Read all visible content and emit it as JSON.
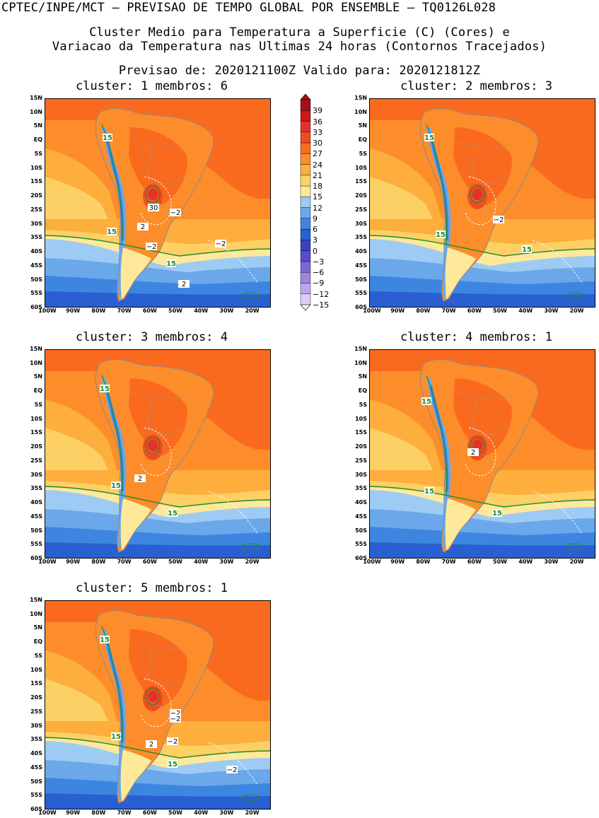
{
  "header": {
    "line1": "CPTEC/INPE/MCT – PREVISAO DE TEMPO GLOBAL POR ENSEMBLE – TQ0126L028",
    "line2": "Cluster Medio para Temperatura a Superficie (C) (Cores) e",
    "line3": "Variacao da Temperatura nas Ultimas 24 horas (Contornos Tracejados)",
    "line4": "Previsao de: 2020121100Z   Valido para: 2020121812Z"
  },
  "axes": {
    "lat_labels": [
      "15N",
      "10N",
      "5N",
      "EQ",
      "5S",
      "10S",
      "15S",
      "20S",
      "25S",
      "30S",
      "35S",
      "40S",
      "45S",
      "50S",
      "55S",
      "60S"
    ],
    "lon_labels": [
      "100W",
      "90W",
      "80W",
      "70W",
      "60W",
      "50W",
      "40W",
      "30W",
      "20W"
    ]
  },
  "colorbar": {
    "labels": [
      "39",
      "36",
      "33",
      "30",
      "27",
      "24",
      "21",
      "18",
      "15",
      "12",
      "9",
      "6",
      "3",
      "0",
      "-3",
      "-6",
      "-9",
      "-12",
      "-15"
    ],
    "colors": [
      "#a50f15",
      "#cb181d",
      "#e0342a",
      "#f04b1f",
      "#fa6a1e",
      "#fd8d2a",
      "#fdae3c",
      "#fdd065",
      "#fee99a",
      "#9ecbf3",
      "#6aa8ea",
      "#3d86e0",
      "#2a5fd2",
      "#3a3fc8",
      "#5a4bcf",
      "#7d66d8",
      "#9c86e2",
      "#bba7ec",
      "#dccdf6"
    ]
  },
  "panels": [
    {
      "title": "cluster: 1   membros: 6",
      "labels15": [
        {
          "t": "15"
        },
        {
          "t": "15"
        },
        {
          "t": "15"
        }
      ],
      "labelsVar": [
        {
          "t": "30"
        },
        {
          "t": "−2"
        },
        {
          "t": "2"
        },
        {
          "t": "−2"
        },
        {
          "t": "−2"
        },
        {
          "t": "2"
        }
      ]
    },
    {
      "title": "cluster: 2   membros: 3",
      "labels15": [
        {
          "t": "15"
        },
        {
          "t": "15"
        },
        {
          "t": "15"
        }
      ],
      "labelsVar": [
        {
          "t": "−2"
        }
      ]
    },
    {
      "title": "cluster: 3   membros: 4",
      "labels15": [
        {
          "t": "15"
        },
        {
          "t": "15"
        },
        {
          "t": "15"
        }
      ],
      "labelsVar": [
        {
          "t": "2"
        }
      ]
    },
    {
      "title": "cluster: 4   membros: 1",
      "labels15": [
        {
          "t": "15"
        },
        {
          "t": "15"
        },
        {
          "t": "15"
        }
      ],
      "labelsVar": [
        {
          "t": "2"
        }
      ]
    },
    {
      "title": "cluster: 5   membros: 1",
      "labels15": [
        {
          "t": "15"
        },
        {
          "t": "15"
        },
        {
          "t": "15"
        }
      ],
      "labelsVar": [
        {
          "t": "−2"
        },
        {
          "t": "−2"
        },
        {
          "t": "2"
        },
        {
          "t": "−2"
        },
        {
          "t": "−2"
        }
      ]
    }
  ]
}
